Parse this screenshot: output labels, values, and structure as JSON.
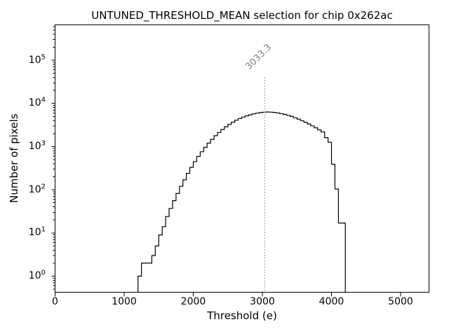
{
  "chart_data": {
    "type": "histogram-step",
    "title": "UNTUNED_THRESHOLD_MEAN selection for chip 0x262ac",
    "xlabel": "Threshold (e)",
    "ylabel": "Number of pixels",
    "xlim": [
      0,
      5420
    ],
    "ylog": true,
    "ylim": [
      0.43,
      671000
    ],
    "xticks": [
      "0",
      "1000",
      "2000",
      "3000",
      "4000",
      "5000"
    ],
    "xtick_values": [
      0,
      1000,
      2000,
      3000,
      4000,
      5000
    ],
    "ytick_base": "10",
    "ytick_exponents": [
      "0",
      "1",
      "2",
      "3",
      "4",
      "5"
    ],
    "grid": false,
    "legend": null,
    "bin_start": 1200,
    "bin_width": 50,
    "counts": [
      1,
      2,
      2,
      2,
      3,
      5,
      9,
      14,
      24,
      37,
      56,
      82,
      120,
      170,
      240,
      330,
      450,
      590,
      760,
      960,
      1200,
      1470,
      1780,
      2120,
      2490,
      2880,
      3280,
      3680,
      4080,
      4460,
      4820,
      5150,
      5450,
      5710,
      5930,
      6110,
      6250,
      6310,
      6280,
      6180,
      6020,
      5810,
      5560,
      5280,
      4980,
      4660,
      4330,
      4000,
      3670,
      3340,
      3020,
      2720,
      2440,
      2180,
      1610,
      1260,
      390,
      104,
      17,
      17
    ],
    "vline": {
      "x": 3033.3,
      "label": "3033.3"
    },
    "colors": {
      "histogram_line": "#000000",
      "vline": "#999999",
      "annotation_text": "#808080",
      "axis": "#000000",
      "text": "#000000"
    }
  }
}
